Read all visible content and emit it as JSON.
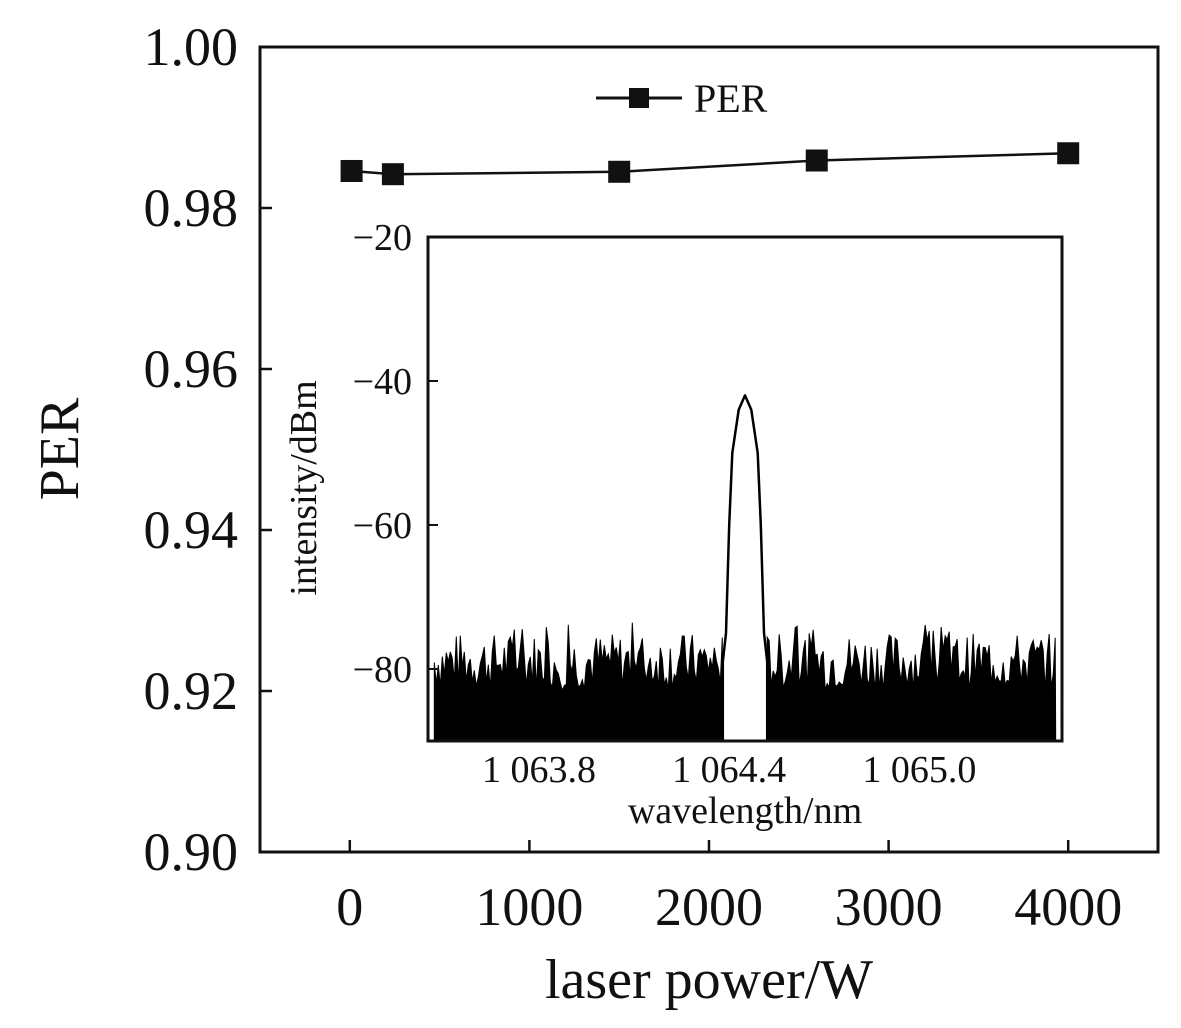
{
  "chart_data": [
    {
      "type": "line",
      "title": "",
      "xlabel": "laser power/W",
      "ylabel": "PER",
      "xlim": [
        -500,
        4500
      ],
      "ylim": [
        0.9,
        1.0
      ],
      "x_ticks": [
        "0",
        "1000",
        "2000",
        "3000",
        "4000"
      ],
      "x_tick_values": [
        0,
        1000,
        2000,
        3000,
        4000
      ],
      "y_ticks": [
        "0.90",
        "0.92",
        "0.94",
        "0.96",
        "0.98",
        "1.00"
      ],
      "y_tick_values": [
        0.9,
        0.92,
        0.94,
        0.96,
        0.98,
        1.0
      ],
      "legend_position": "top-center",
      "grid": false,
      "series": [
        {
          "name": "PER",
          "marker": "square",
          "color": "#111111",
          "x": [
            10,
            240,
            1500,
            2600,
            4000
          ],
          "y": [
            0.9846,
            0.9842,
            0.9845,
            0.9859,
            0.9868
          ]
        }
      ]
    },
    {
      "type": "line",
      "title": "",
      "xlabel": "wavelength/nm",
      "ylabel": "intensity/dBm",
      "xlim": [
        1063.45,
        1065.45
      ],
      "ylim": [
        -90,
        -20
      ],
      "x_ticks": [
        "1 063.8",
        "1 064.4",
        "1 065.0"
      ],
      "x_tick_values": [
        1063.8,
        1064.4,
        1065.0
      ],
      "y_ticks": [
        "−20",
        "−40",
        "−60",
        "−80"
      ],
      "y_tick_values": [
        -20,
        -40,
        -60,
        -80
      ],
      "grid": false,
      "series": [
        {
          "color": "#000000",
          "peak_wavelength": 1064.45,
          "peak_intensity": -42,
          "noise_floor": -79,
          "noise_range": [
            -83,
            -75
          ],
          "x": [
            1063.45,
            1064.38,
            1064.39,
            1064.4,
            1064.41,
            1064.43,
            1064.45,
            1064.47,
            1064.49,
            1064.5,
            1064.51,
            1064.52,
            1065.45
          ],
          "y": [
            -79,
            -79,
            -75,
            -60,
            -50,
            -44,
            -42,
            -44,
            -50,
            -60,
            -75,
            -79,
            -79
          ]
        }
      ]
    }
  ]
}
